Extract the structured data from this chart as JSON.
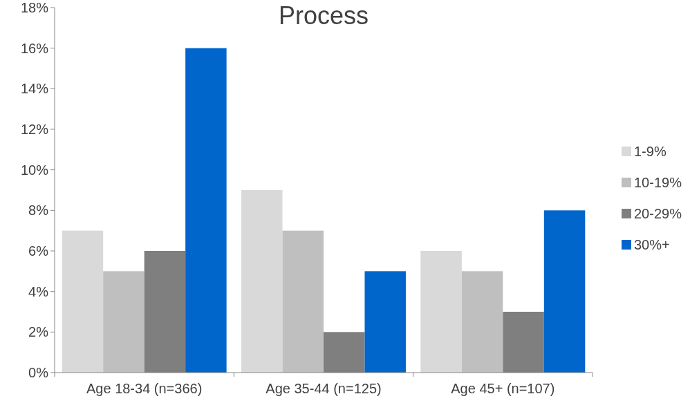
{
  "chart_data": {
    "type": "bar",
    "title": "Process",
    "categories": [
      "Age 18-34 (n=366)",
      "Age 35-44 (n=125)",
      "Age 45+ (n=107)"
    ],
    "series": [
      {
        "name": "1-9%",
        "color": "#d9d9d9",
        "values": [
          7,
          9,
          6
        ]
      },
      {
        "name": "10-19%",
        "color": "#bfbfbf",
        "values": [
          5,
          7,
          5
        ]
      },
      {
        "name": "20-29%",
        "color": "#7f7f7f",
        "values": [
          6,
          2,
          3
        ]
      },
      {
        "name": "30%+",
        "color": "#0066cc",
        "values": [
          16,
          5,
          8
        ]
      }
    ],
    "ylim": [
      0,
      18
    ],
    "yticks": [
      {
        "value": 0,
        "label": "0%"
      },
      {
        "value": 2,
        "label": "2%"
      },
      {
        "value": 4,
        "label": "4%"
      },
      {
        "value": 6,
        "label": "6%"
      },
      {
        "value": 8,
        "label": "8%"
      },
      {
        "value": 10,
        "label": "10%"
      },
      {
        "value": 12,
        "label": "12%"
      },
      {
        "value": 14,
        "label": "14%"
      },
      {
        "value": 16,
        "label": "16%"
      },
      {
        "value": 18,
        "label": "18%"
      }
    ],
    "grid": false,
    "legend": "right"
  }
}
